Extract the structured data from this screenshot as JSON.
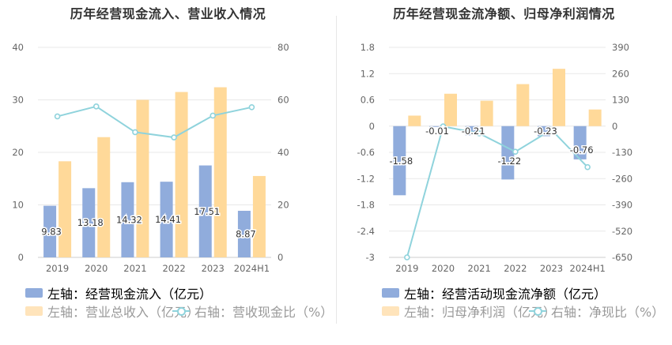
{
  "colors": {
    "bar_blue": "#90acdc",
    "bar_orange": "#ffd999",
    "line": "#8fd3dc",
    "grid": "#e8e8e8",
    "axis_text": "#666666"
  },
  "chart_data": [
    {
      "type": "bar",
      "title": "历年经营现金流入、营业收入情况",
      "categories": [
        "2019",
        "2020",
        "2021",
        "2022",
        "2023",
        "2024H1"
      ],
      "y_left": {
        "ylim": [
          0,
          40
        ],
        "ticks": [
          "0",
          "10",
          "20",
          "30",
          "40"
        ]
      },
      "y_right": {
        "ylim": [
          0,
          80
        ],
        "ticks": [
          "0",
          "20",
          "40",
          "60",
          "80"
        ]
      },
      "series": [
        {
          "name": "左轴：经营现金流入（亿元）",
          "axis": "left",
          "type": "bar",
          "values": [
            9.83,
            13.18,
            14.32,
            14.41,
            17.51,
            8.87
          ],
          "labels": [
            "9.83",
            "13.18",
            "14.32",
            "14.41",
            "17.51",
            "8.87"
          ]
        },
        {
          "name": "左轴：营业总收入（亿元）",
          "axis": "left",
          "type": "bar",
          "values": [
            18.3,
            22.9,
            30.0,
            31.5,
            32.4,
            15.5
          ]
        },
        {
          "name": "右轴：营收现金比（%）",
          "axis": "right",
          "type": "line",
          "values": [
            53.7,
            57.5,
            47.7,
            45.7,
            54.0,
            57.2
          ]
        }
      ],
      "grid": true,
      "legend": "bottom"
    },
    {
      "type": "bar",
      "title": "历年经营现金流净额、归母净利润情况",
      "categories": [
        "2019",
        "2020",
        "2021",
        "2022",
        "2023",
        "2024H1"
      ],
      "y_left": {
        "ylim": [
          -3,
          1.8
        ],
        "ticks": [
          "-3",
          "-2.4",
          "-1.8",
          "-1.2",
          "-0.6",
          "0",
          "0.6",
          "1.2",
          "1.8"
        ]
      },
      "y_right": {
        "ylim": [
          -650,
          390
        ],
        "ticks": [
          "-650",
          "-520",
          "-390",
          "-260",
          "-130",
          "0",
          "130",
          "260",
          "390"
        ]
      },
      "series": [
        {
          "name": "左轴：经营活动现金流净额（亿元）",
          "axis": "left",
          "type": "bar",
          "values": [
            -1.58,
            -0.01,
            -0.21,
            -1.22,
            -0.23,
            -0.76
          ],
          "labels": [
            "-1.58",
            "-0.01",
            "-0.21",
            "-1.22",
            "-0.23",
            "-0.76"
          ]
        },
        {
          "name": "左轴：归母净利润（亿元）",
          "axis": "left",
          "type": "bar",
          "values": [
            0.24,
            0.74,
            0.58,
            0.96,
            1.31,
            0.38
          ]
        },
        {
          "name": "右轴：净现比（%）",
          "axis": "right",
          "type": "line",
          "values": [
            -650,
            -1.4,
            -36,
            -127,
            -18,
            -203
          ]
        }
      ],
      "grid": true,
      "legend": "bottom"
    }
  ]
}
